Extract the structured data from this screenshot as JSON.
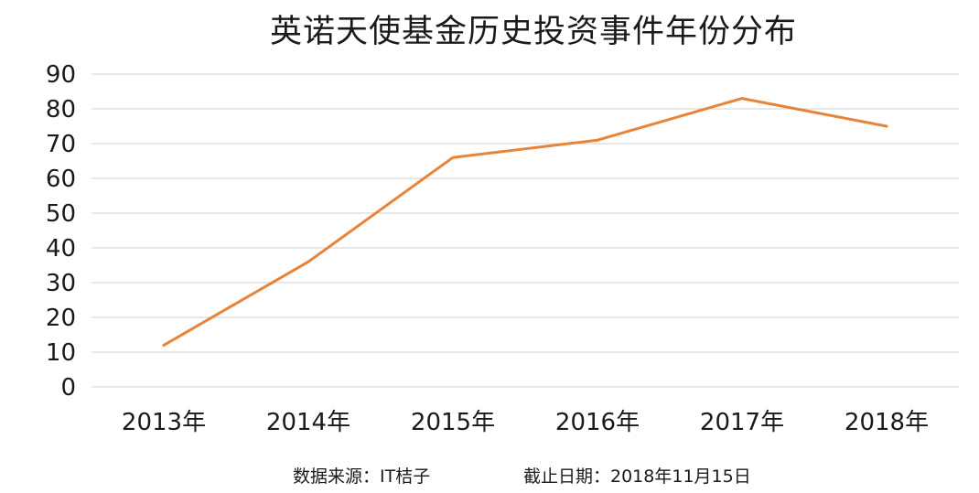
{
  "chart_data": {
    "type": "line",
    "title": "英诺天使基金历史投资事件年份分布",
    "categories": [
      "2013年",
      "2014年",
      "2015年",
      "2016年",
      "2017年",
      "2018年"
    ],
    "series": [
      {
        "values": [
          12,
          36,
          66,
          71,
          83,
          75
        ]
      }
    ],
    "ylim": [
      0,
      90
    ],
    "yticks": [
      0,
      10,
      20,
      30,
      40,
      50,
      60,
      70,
      80,
      90
    ],
    "grid": true,
    "legend": "none",
    "colors": {
      "line": "#E8833A",
      "grid": "#D9D9D9"
    }
  },
  "footer": {
    "source": "数据来源：IT桔子",
    "cutoff": "截止日期：2018年11月15日"
  }
}
